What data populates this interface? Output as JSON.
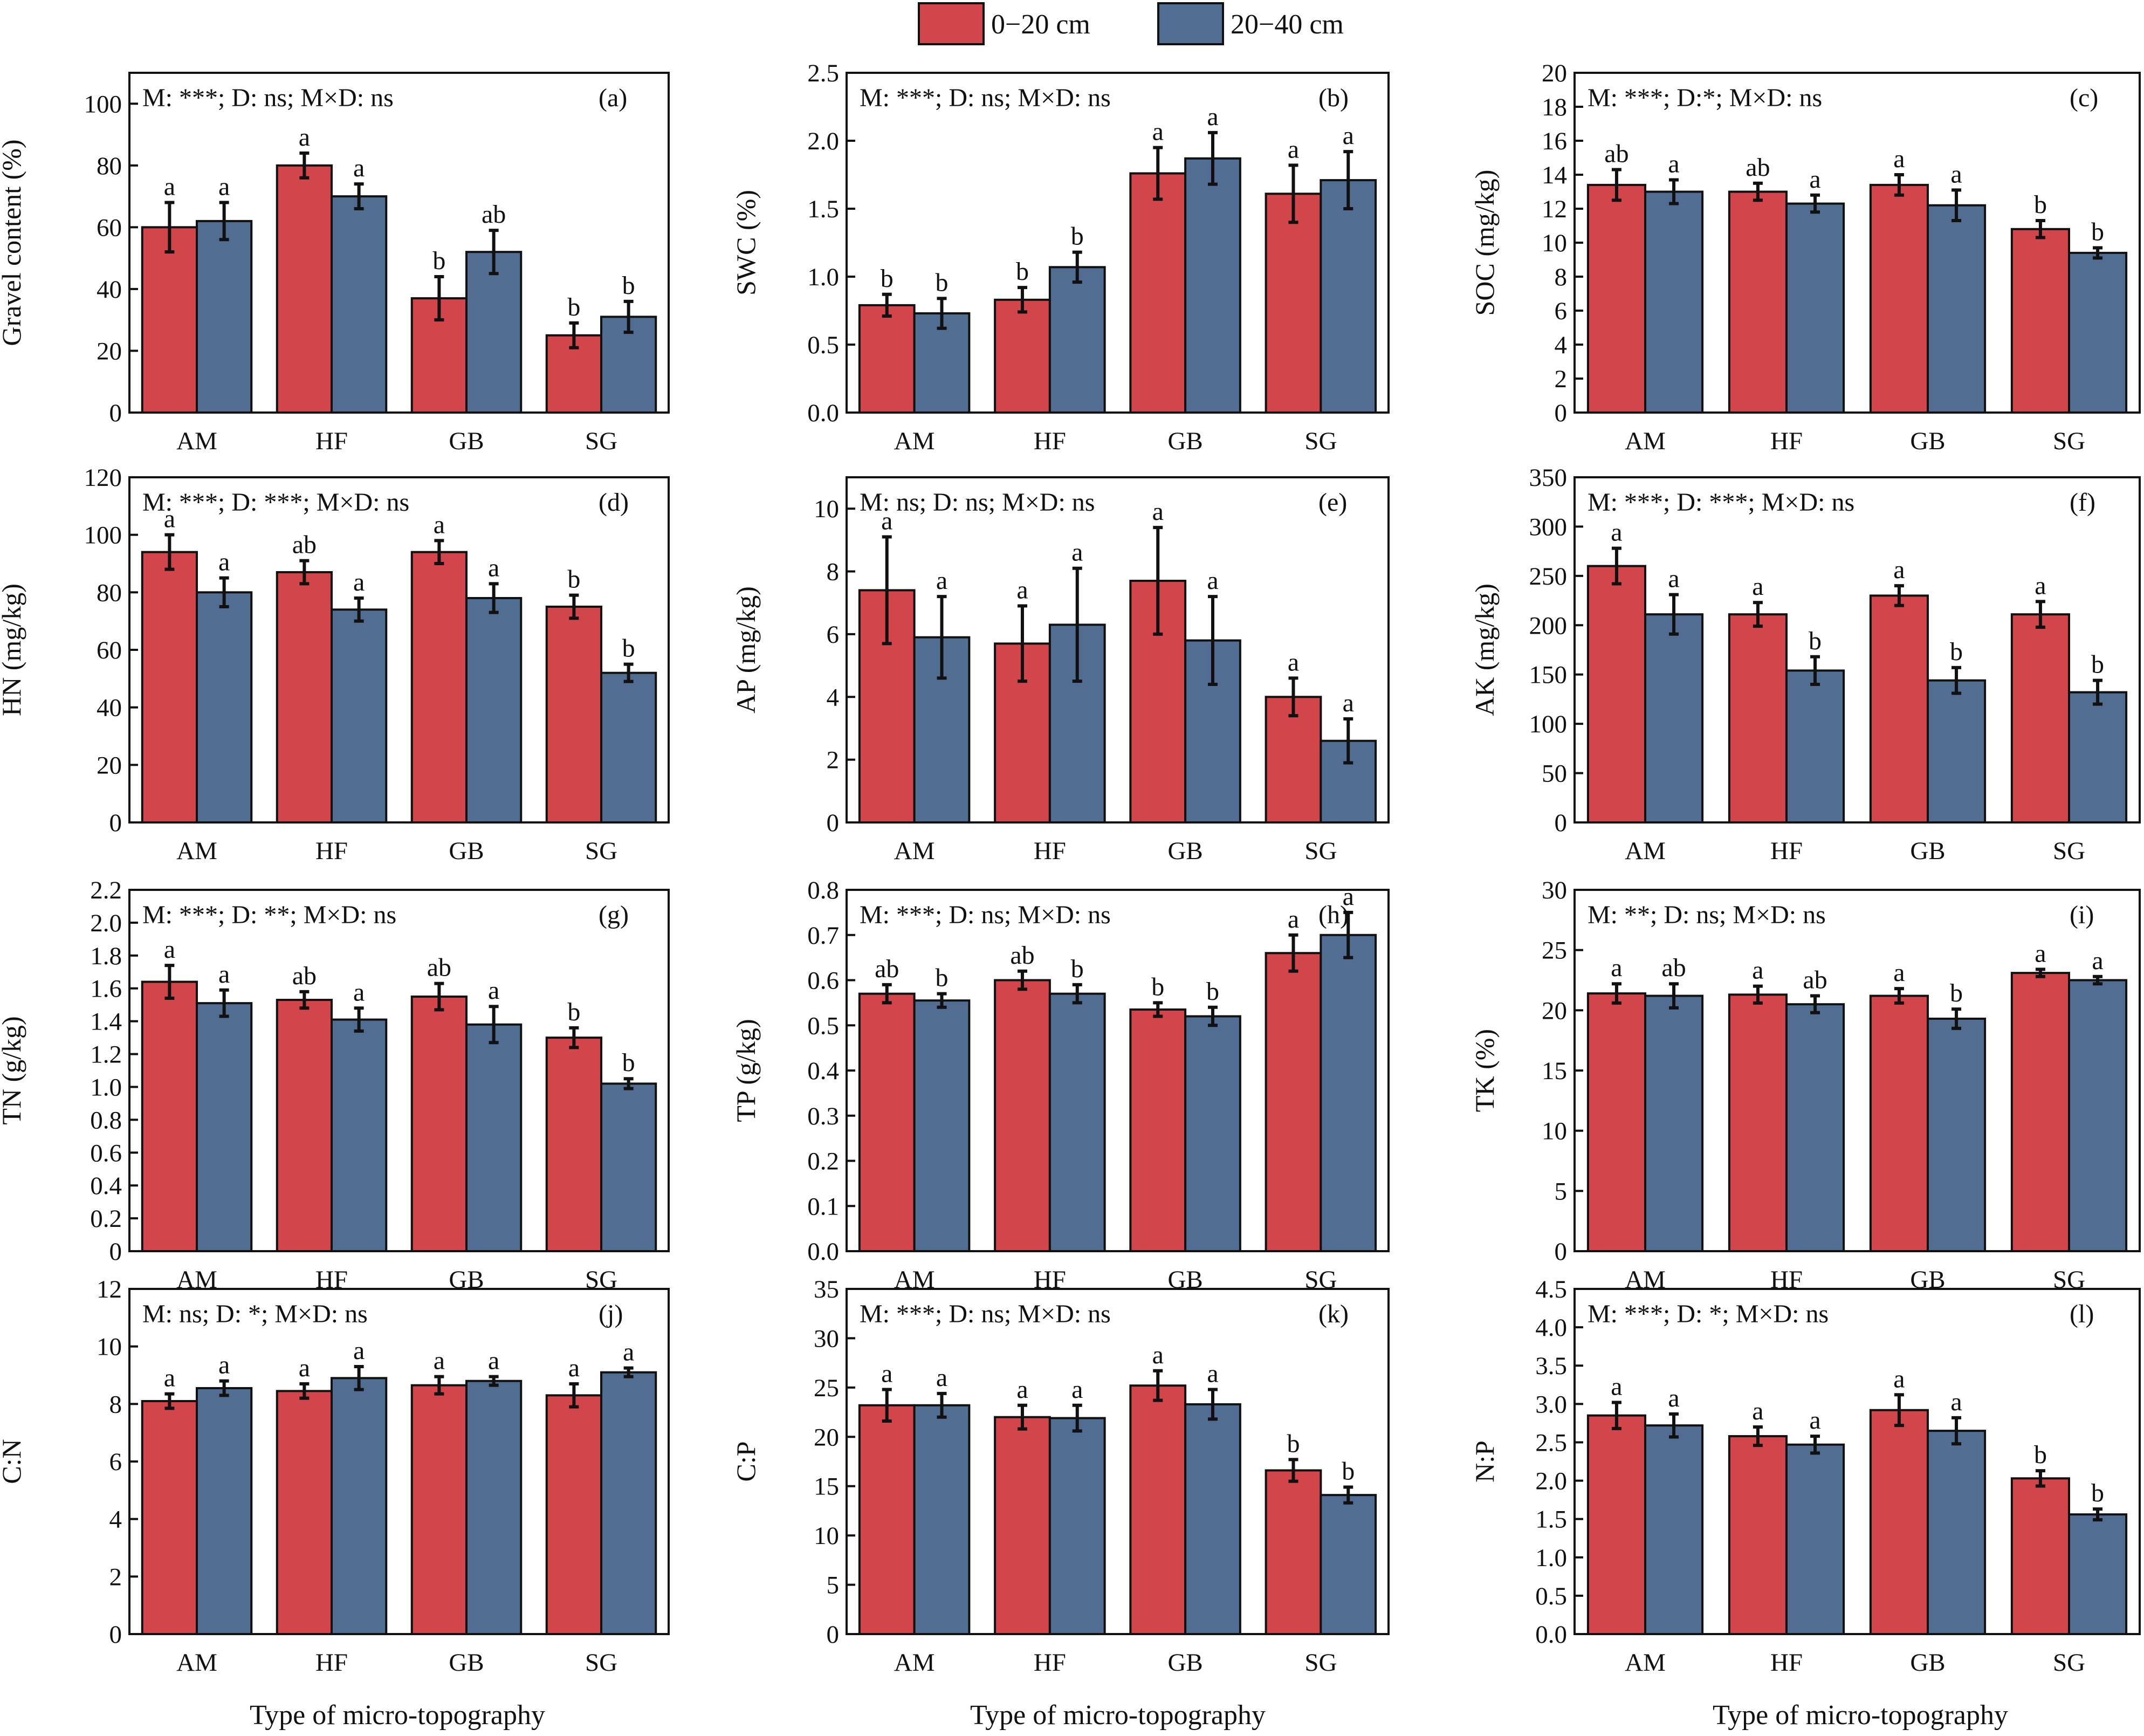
{
  "colors": {
    "depth_0_20": "#d2454a",
    "depth_20_40": "#526d92",
    "axis": "#111111",
    "error_bar": "#111111"
  },
  "legend": {
    "placement": "top-center",
    "items": [
      "0−20 cm",
      "20−40 cm"
    ]
  },
  "xlabel": "Type of micro-topography",
  "chart_data": [
    {
      "id": "a",
      "type": "bar",
      "panel_label": "(a)",
      "stat_text": "M: ***; D: ns; M×D: ns",
      "ylabel": "Gravel content (%)",
      "ylim": [
        0,
        110
      ],
      "yticks": [
        0,
        20,
        40,
        60,
        80,
        100
      ],
      "categories": [
        "AM",
        "HF",
        "GB",
        "SG"
      ],
      "series": [
        {
          "name": "0−20 cm",
          "values": [
            60,
            80,
            37,
            25
          ],
          "errors": [
            8,
            4,
            7,
            4
          ],
          "letters": [
            "a",
            "a",
            "b",
            "b"
          ]
        },
        {
          "name": "20−40 cm",
          "values": [
            62,
            70,
            52,
            31
          ],
          "errors": [
            6,
            4,
            7,
            5
          ],
          "letters": [
            "a",
            "a",
            "ab",
            "b"
          ]
        }
      ]
    },
    {
      "id": "b",
      "type": "bar",
      "panel_label": "(b)",
      "stat_text": "M: ***; D: ns; M×D: ns",
      "ylabel": "SWC (%)",
      "ylim": [
        0,
        2.5
      ],
      "yticks": [
        "0.0",
        "0.5",
        "1.0",
        "1.5",
        "2.0",
        "2.5"
      ],
      "categories": [
        "AM",
        "HF",
        "GB",
        "SG"
      ],
      "series": [
        {
          "name": "0−20 cm",
          "values": [
            0.79,
            0.83,
            1.76,
            1.61
          ],
          "errors": [
            0.08,
            0.09,
            0.19,
            0.21
          ],
          "letters": [
            "b",
            "b",
            "a",
            "a"
          ]
        },
        {
          "name": "20−40 cm",
          "values": [
            0.73,
            1.07,
            1.87,
            1.71
          ],
          "errors": [
            0.11,
            0.11,
            0.19,
            0.21
          ],
          "letters": [
            "b",
            "b",
            "a",
            "a"
          ]
        }
      ]
    },
    {
      "id": "c",
      "type": "bar",
      "panel_label": "(c)",
      "stat_text": "M: ***; D:*; M×D: ns",
      "ylabel": "SOC (mg/kg)",
      "ylim": [
        0,
        20
      ],
      "yticks": [
        0,
        2,
        4,
        6,
        8,
        10,
        12,
        14,
        16,
        18,
        20
      ],
      "categories": [
        "AM",
        "HF",
        "GB",
        "SG"
      ],
      "series": [
        {
          "name": "0−20 cm",
          "values": [
            13.4,
            13.0,
            13.4,
            10.8
          ],
          "errors": [
            0.9,
            0.5,
            0.6,
            0.5
          ],
          "letters": [
            "ab",
            "ab",
            "a",
            "b"
          ]
        },
        {
          "name": "20−40 cm",
          "values": [
            13.0,
            12.3,
            12.2,
            9.4
          ],
          "errors": [
            0.7,
            0.5,
            0.9,
            0.3
          ],
          "letters": [
            "a",
            "a",
            "a",
            "b"
          ]
        }
      ]
    },
    {
      "id": "d",
      "type": "bar",
      "panel_label": "(d)",
      "stat_text": "M: ***; D: ***; M×D: ns",
      "ylabel": "HN (mg/kg)",
      "ylim": [
        0,
        120
      ],
      "yticks": [
        0,
        20,
        40,
        60,
        80,
        100,
        120
      ],
      "categories": [
        "AM",
        "HF",
        "GB",
        "SG"
      ],
      "series": [
        {
          "name": "0−20 cm",
          "values": [
            94,
            87,
            94,
            75
          ],
          "errors": [
            6,
            4,
            4,
            4
          ],
          "letters": [
            "a",
            "ab",
            "a",
            "b"
          ]
        },
        {
          "name": "20−40 cm",
          "values": [
            80,
            74,
            78,
            52
          ],
          "errors": [
            5,
            4,
            5,
            3
          ],
          "letters": [
            "a",
            "a",
            "a",
            "b"
          ]
        }
      ]
    },
    {
      "id": "e",
      "type": "bar",
      "panel_label": "(e)",
      "stat_text": "M: ns; D: ns; M×D: ns",
      "ylabel": "AP (mg/kg)",
      "ylim": [
        0,
        11
      ],
      "yticks": [
        0,
        2,
        4,
        6,
        8,
        10
      ],
      "categories": [
        "AM",
        "HF",
        "GB",
        "SG"
      ],
      "series": [
        {
          "name": "0−20 cm",
          "values": [
            7.4,
            5.7,
            7.7,
            4.0
          ],
          "errors": [
            1.7,
            1.2,
            1.7,
            0.6
          ],
          "letters": [
            "a",
            "a",
            "a",
            "a"
          ]
        },
        {
          "name": "20−40 cm",
          "values": [
            5.9,
            6.3,
            5.8,
            2.6
          ],
          "errors": [
            1.3,
            1.8,
            1.4,
            0.7
          ],
          "letters": [
            "a",
            "a",
            "a",
            "a"
          ]
        }
      ]
    },
    {
      "id": "f",
      "type": "bar",
      "panel_label": "(f)",
      "stat_text": "M: ***; D: ***; M×D: ns",
      "ylabel": "AK (mg/kg)",
      "ylim": [
        0,
        350
      ],
      "yticks": [
        0,
        50,
        100,
        150,
        200,
        250,
        300,
        350
      ],
      "categories": [
        "AM",
        "HF",
        "GB",
        "SG"
      ],
      "series": [
        {
          "name": "0−20 cm",
          "values": [
            260,
            211,
            230,
            211
          ],
          "errors": [
            18,
            12,
            10,
            13
          ],
          "letters": [
            "a",
            "a",
            "a",
            "a"
          ]
        },
        {
          "name": "20−40 cm",
          "values": [
            211,
            154,
            144,
            132
          ],
          "errors": [
            20,
            14,
            13,
            12
          ],
          "letters": [
            "a",
            "b",
            "b",
            "b"
          ]
        }
      ]
    },
    {
      "id": "g",
      "type": "bar",
      "panel_label": "(g)",
      "stat_text": "M: ***; D: **; M×D: ns",
      "ylabel": "TN (g/kg)",
      "ylim": [
        0,
        2.2
      ],
      "yticks": [
        "0",
        "0.2",
        "0.4",
        "0.6",
        "0.8",
        "1.0",
        "1.2",
        "1.4",
        "1.6",
        "1.8",
        "2.0",
        "2.2"
      ],
      "categories": [
        "AM",
        "HF",
        "GB",
        "SG"
      ],
      "series": [
        {
          "name": "0−20 cm",
          "values": [
            1.64,
            1.53,
            1.55,
            1.3
          ],
          "errors": [
            0.1,
            0.05,
            0.08,
            0.06
          ],
          "letters": [
            "a",
            "ab",
            "ab",
            "b"
          ]
        },
        {
          "name": "20−40 cm",
          "values": [
            1.51,
            1.41,
            1.38,
            1.02
          ],
          "errors": [
            0.08,
            0.07,
            0.11,
            0.03
          ],
          "letters": [
            "a",
            "a",
            "a",
            "b"
          ]
        }
      ]
    },
    {
      "id": "h",
      "type": "bar",
      "panel_label": "(h)",
      "stat_text": "M: ***; D: ns; M×D: ns",
      "ylabel": "TP (g/kg)",
      "ylim": [
        0,
        0.8
      ],
      "yticks": [
        "0.0",
        "0.1",
        "0.2",
        "0.3",
        "0.4",
        "0.5",
        "0.6",
        "0.7",
        "0.8"
      ],
      "categories": [
        "AM",
        "HF",
        "GB",
        "SG"
      ],
      "series": [
        {
          "name": "0−20 cm",
          "values": [
            0.57,
            0.6,
            0.535,
            0.66
          ],
          "errors": [
            0.02,
            0.02,
            0.015,
            0.04
          ],
          "letters": [
            "ab",
            "ab",
            "b",
            "a"
          ]
        },
        {
          "name": "20−40 cm",
          "values": [
            0.555,
            0.57,
            0.52,
            0.7
          ],
          "errors": [
            0.015,
            0.02,
            0.02,
            0.05
          ],
          "letters": [
            "b",
            "b",
            "b",
            "a"
          ]
        }
      ]
    },
    {
      "id": "i",
      "type": "bar",
      "panel_label": "(i)",
      "stat_text": "M: **; D: ns; M×D: ns",
      "ylabel": "TK (%)",
      "ylim": [
        0,
        30
      ],
      "yticks": [
        0,
        5,
        10,
        15,
        20,
        25,
        30
      ],
      "categories": [
        "AM",
        "HF",
        "GB",
        "SG"
      ],
      "series": [
        {
          "name": "0−20 cm",
          "values": [
            21.4,
            21.3,
            21.2,
            23.1
          ],
          "errors": [
            0.8,
            0.7,
            0.6,
            0.3
          ],
          "letters": [
            "a",
            "a",
            "a",
            "a"
          ]
        },
        {
          "name": "20−40 cm",
          "values": [
            21.2,
            20.5,
            19.3,
            22.5
          ],
          "errors": [
            1.0,
            0.7,
            0.8,
            0.3
          ],
          "letters": [
            "ab",
            "ab",
            "b",
            "a"
          ]
        }
      ]
    },
    {
      "id": "j",
      "type": "bar",
      "panel_label": "(j)",
      "stat_text": "M: ns; D: *; M×D: ns",
      "ylabel": "C:N",
      "ylim": [
        0,
        12
      ],
      "yticks": [
        0,
        2,
        4,
        6,
        8,
        10,
        12
      ],
      "categories": [
        "AM",
        "HF",
        "GB",
        "SG"
      ],
      "series": [
        {
          "name": "0−20 cm",
          "values": [
            8.1,
            8.45,
            8.65,
            8.3
          ],
          "errors": [
            0.25,
            0.25,
            0.3,
            0.4
          ],
          "letters": [
            "a",
            "a",
            "a",
            "a"
          ]
        },
        {
          "name": "20−40 cm",
          "values": [
            8.55,
            8.9,
            8.8,
            9.1
          ],
          "errors": [
            0.25,
            0.4,
            0.15,
            0.15
          ],
          "letters": [
            "a",
            "a",
            "a",
            "a"
          ]
        }
      ]
    },
    {
      "id": "k",
      "type": "bar",
      "panel_label": "(k)",
      "stat_text": "M: ***; D: ns; M×D: ns",
      "ylabel": "C:P",
      "ylim": [
        0,
        35
      ],
      "yticks": [
        0,
        5,
        10,
        15,
        20,
        25,
        30,
        35
      ],
      "categories": [
        "AM",
        "HF",
        "GB",
        "SG"
      ],
      "series": [
        {
          "name": "0−20 cm",
          "values": [
            23.2,
            22.0,
            25.2,
            16.6
          ],
          "errors": [
            1.6,
            1.2,
            1.5,
            1.1
          ],
          "letters": [
            "a",
            "a",
            "a",
            "b"
          ]
        },
        {
          "name": "20−40 cm",
          "values": [
            23.2,
            21.9,
            23.3,
            14.1
          ],
          "errors": [
            1.2,
            1.3,
            1.5,
            0.8
          ],
          "letters": [
            "a",
            "a",
            "a",
            "b"
          ]
        }
      ]
    },
    {
      "id": "l",
      "type": "bar",
      "panel_label": "(l)",
      "stat_text": "M: ***; D: *; M×D: ns",
      "ylabel": "N:P",
      "ylim": [
        0,
        4.5
      ],
      "yticks": [
        "0.0",
        "0.5",
        "1.0",
        "1.5",
        "2.0",
        "2.5",
        "3.0",
        "3.5",
        "4.0",
        "4.5"
      ],
      "categories": [
        "AM",
        "HF",
        "GB",
        "SG"
      ],
      "series": [
        {
          "name": "0−20 cm",
          "values": [
            2.85,
            2.58,
            2.92,
            2.03
          ],
          "errors": [
            0.17,
            0.12,
            0.2,
            0.1
          ],
          "letters": [
            "a",
            "a",
            "a",
            "b"
          ]
        },
        {
          "name": "20−40 cm",
          "values": [
            2.72,
            2.47,
            2.65,
            1.56
          ],
          "errors": [
            0.15,
            0.11,
            0.17,
            0.07
          ],
          "letters": [
            "a",
            "a",
            "a",
            "b"
          ]
        }
      ]
    }
  ]
}
